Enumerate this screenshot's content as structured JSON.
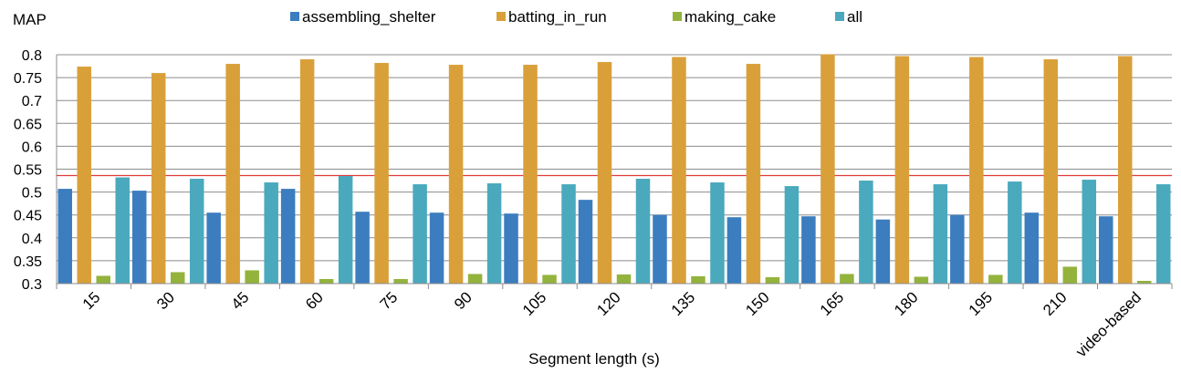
{
  "chart_data": {
    "type": "bar",
    "ylabel": "MAP",
    "xlabel": "Segment length (s)",
    "ylim": [
      0.3,
      0.8
    ],
    "ytick_step": 0.05,
    "yticks": [
      "0.3",
      "0.35",
      "0.4",
      "0.45",
      "0.5",
      "0.55",
      "0.6",
      "0.65",
      "0.7",
      "0.75",
      "0.8"
    ],
    "grid": true,
    "legend_position": "top",
    "reference_line": {
      "value": 0.536,
      "color": "#e03c3c"
    },
    "categories": [
      "15",
      "30",
      "45",
      "60",
      "75",
      "90",
      "105",
      "120",
      "135",
      "150",
      "165",
      "180",
      "195",
      "210",
      "video-based"
    ],
    "series": [
      {
        "name": "assembling_shelter",
        "color": "#3b7dbf",
        "values": [
          0.507,
          0.503,
          0.455,
          0.507,
          0.457,
          0.455,
          0.453,
          0.483,
          0.45,
          0.445,
          0.447,
          0.44,
          0.45,
          0.455,
          0.447
        ]
      },
      {
        "name": "batting_in_run",
        "color": "#d9a03a",
        "values": [
          0.774,
          0.76,
          0.78,
          0.79,
          0.782,
          0.778,
          0.778,
          0.784,
          0.795,
          0.78,
          0.801,
          0.797,
          0.795,
          0.79,
          0.797
        ]
      },
      {
        "name": "making_cake",
        "color": "#93b33d",
        "values": [
          0.317,
          0.325,
          0.329,
          0.31,
          0.31,
          0.321,
          0.319,
          0.32,
          0.316,
          0.314,
          0.321,
          0.315,
          0.319,
          0.337,
          0.306
        ]
      },
      {
        "name": "all",
        "color": "#4aa9bd",
        "values": [
          0.532,
          0.529,
          0.521,
          0.535,
          0.517,
          0.519,
          0.517,
          0.529,
          0.521,
          0.513,
          0.525,
          0.517,
          0.523,
          0.527,
          0.517
        ]
      }
    ]
  }
}
